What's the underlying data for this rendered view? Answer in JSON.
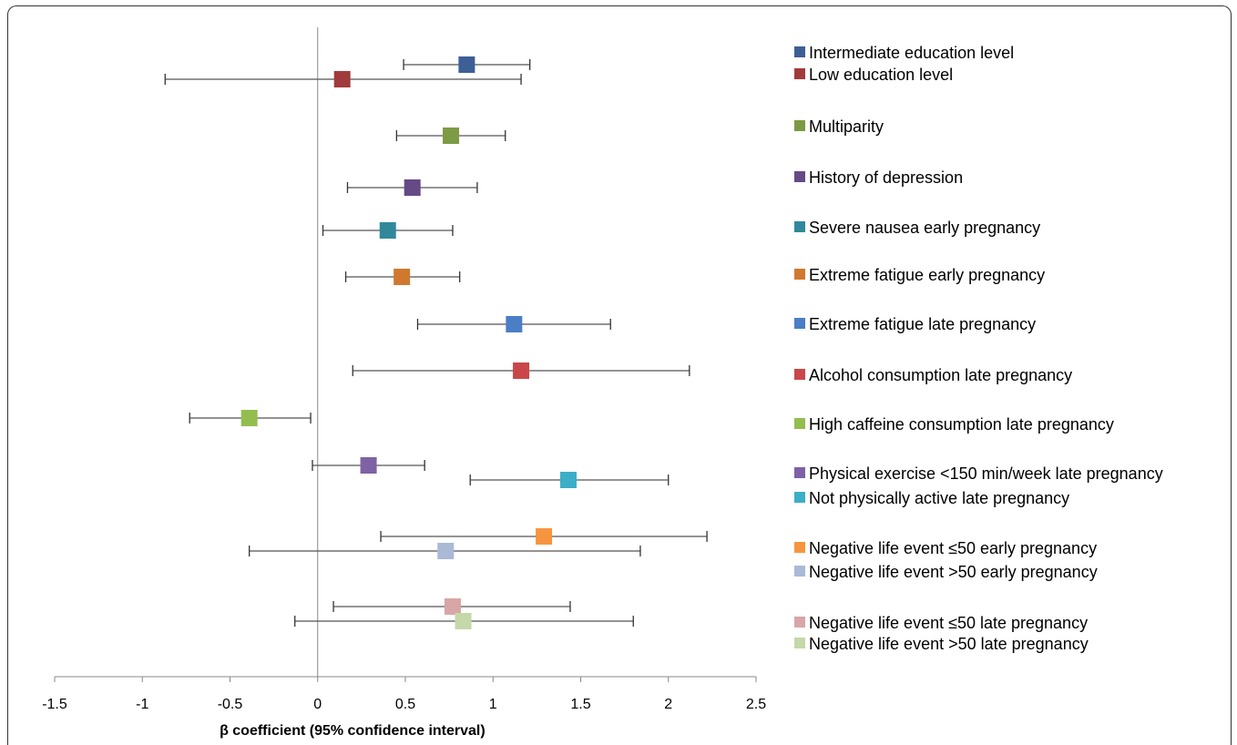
{
  "chart_data": {
    "type": "forest",
    "xlabel": "β coefficient (95% confidence interval)",
    "xlim": [
      -1.5,
      2.5
    ],
    "xticks": [
      "-1.5",
      "-1",
      "-0.5",
      "0",
      "0.5",
      "1",
      "1.5",
      "2",
      "2.5"
    ],
    "reference_line": 0,
    "legend_position": "right",
    "series": [
      {
        "name": "Intermediate education level",
        "estimate": 0.85,
        "ci_low": 0.49,
        "ci_high": 1.21,
        "color": "#3c5f96"
      },
      {
        "name": "Low education level",
        "estimate": 0.14,
        "ci_low": -0.87,
        "ci_high": 1.16,
        "color": "#a13b3b"
      },
      {
        "name": "Multiparity",
        "estimate": 0.76,
        "ci_low": 0.45,
        "ci_high": 1.07,
        "color": "#7d9a45"
      },
      {
        "name": "History of depression",
        "estimate": 0.54,
        "ci_low": 0.17,
        "ci_high": 0.91,
        "color": "#654a86"
      },
      {
        "name": "Severe nausea early pregnancy",
        "estimate": 0.4,
        "ci_low": 0.03,
        "ci_high": 0.77,
        "color": "#31889b"
      },
      {
        "name": "Extreme fatigue early pregnancy",
        "estimate": 0.48,
        "ci_low": 0.16,
        "ci_high": 0.81,
        "color": "#d0792e"
      },
      {
        "name": "Extreme fatigue late pregnancy",
        "estimate": 1.12,
        "ci_low": 0.57,
        "ci_high": 1.67,
        "color": "#4a7ec5"
      },
      {
        "name": "Alcohol consumption late pregnancy",
        "estimate": 1.16,
        "ci_low": 0.2,
        "ci_high": 2.12,
        "color": "#c9474a"
      },
      {
        "name": "High caffeine consumption late pregnancy",
        "estimate": -0.39,
        "ci_low": -0.73,
        "ci_high": -0.04,
        "color": "#94bd4f"
      },
      {
        "name": "Physical exercise <150 min/week late pregnancy",
        "estimate": 0.29,
        "ci_low": -0.03,
        "ci_high": 0.61,
        "color": "#7e62a5"
      },
      {
        "name": "Not physically active late pregnancy",
        "estimate": 1.43,
        "ci_low": 0.87,
        "ci_high": 2.0,
        "color": "#3caec7"
      },
      {
        "name": "Negative life event ≤50 early pregnancy",
        "estimate": 1.29,
        "ci_low": 0.36,
        "ci_high": 2.22,
        "color": "#f7953f"
      },
      {
        "name": "Negative life event >50 early pregnancy",
        "estimate": 0.73,
        "ci_low": -0.39,
        "ci_high": 1.84,
        "color": "#aab9d6"
      },
      {
        "name": "Negative life event ≤50 late pregnancy",
        "estimate": 0.77,
        "ci_low": 0.09,
        "ci_high": 1.44,
        "color": "#d8a6a6"
      },
      {
        "name": "Negative life event >50 late pregnancy",
        "estimate": 0.83,
        "ci_low": -0.13,
        "ci_high": 1.8,
        "color": "#c4d8a8"
      }
    ]
  }
}
